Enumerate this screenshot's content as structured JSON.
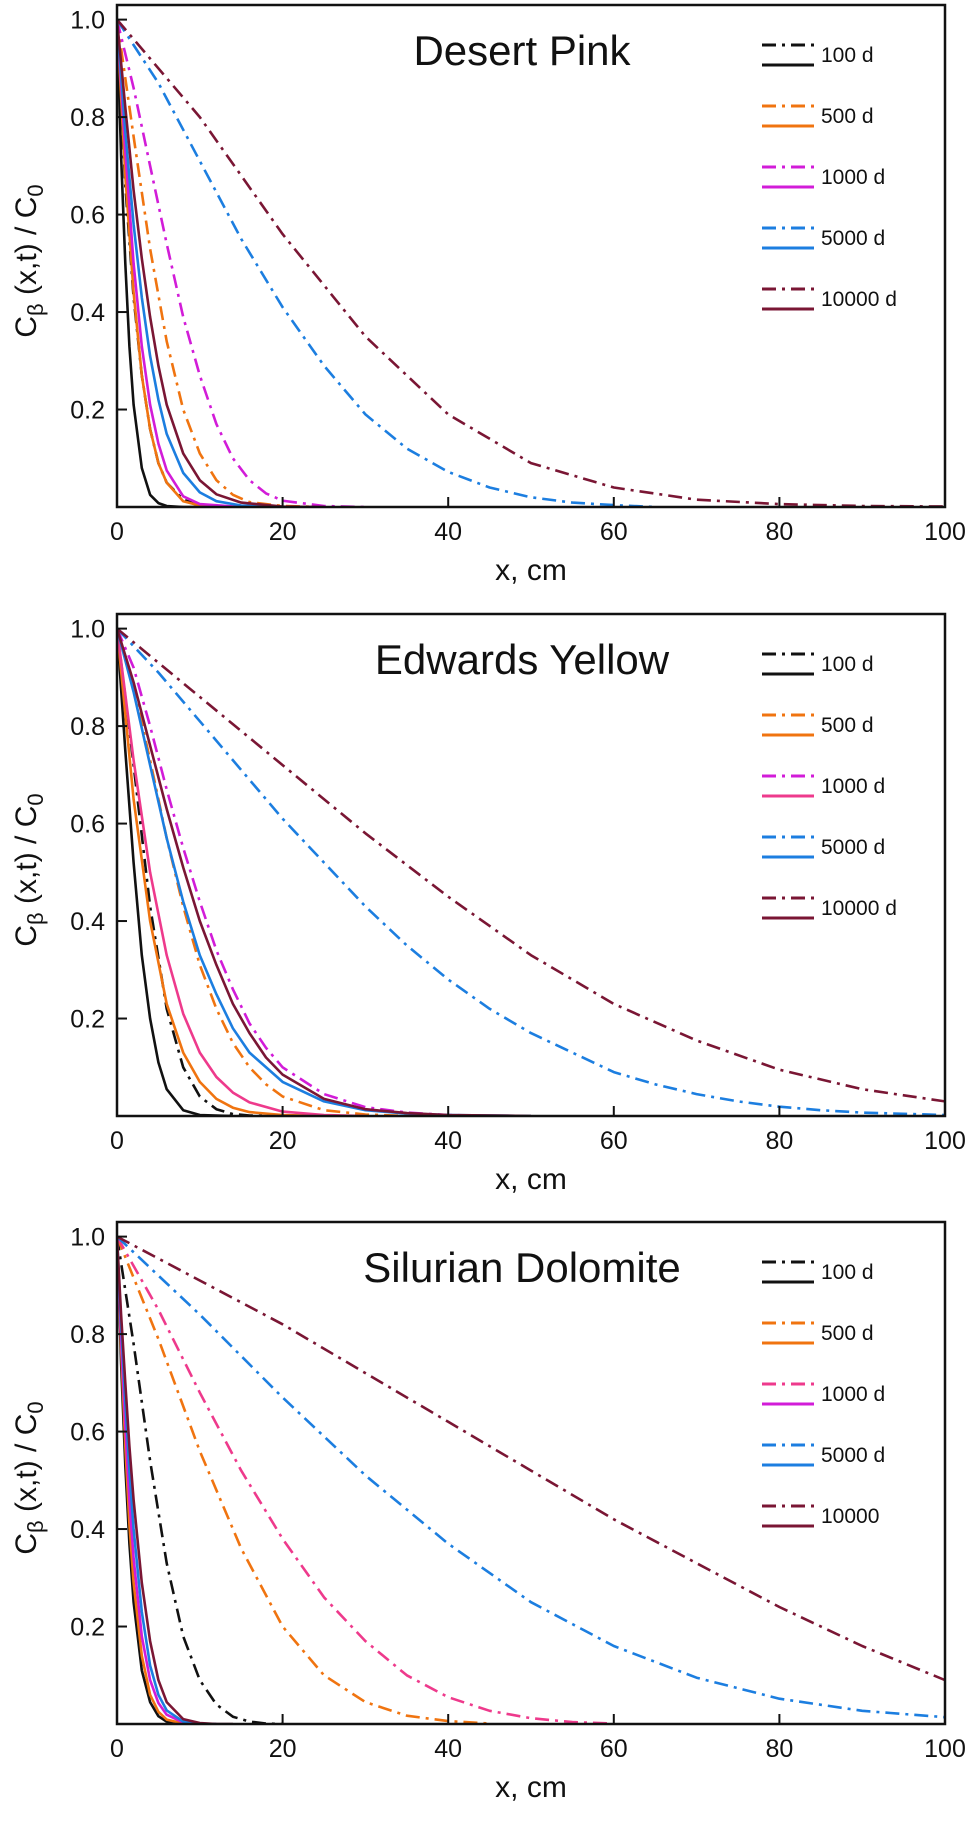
{
  "colors": {
    "100 d": "#111111",
    "500 d": "#f07410",
    "1000 d": "#d21cd8",
    "5000 d": "#1c7ee0",
    "10000 d": "#7a1634",
    "magenta_pink": "#ee3a8c",
    "axis": "#111111"
  },
  "chart_data": [
    {
      "type": "line",
      "title": "Desert Pink",
      "xlabel": "x, cm",
      "ylabel": {
        "main": "C",
        "sub": "β",
        "mid": " (x,t) / C",
        "sub2": "0"
      },
      "xlim": [
        0,
        100
      ],
      "ylim": [
        0,
        1.03
      ],
      "xticks": [
        "0",
        "20",
        "40",
        "60",
        "80",
        "100"
      ],
      "yticks": [
        "0.2",
        "0.4",
        "0.6",
        "0.8",
        "1.0"
      ],
      "legend": {
        "position": "top-right",
        "entries": [
          "100 d",
          "500 d",
          "1000 d",
          "5000 d",
          "10000 d"
        ]
      },
      "series": [
        {
          "legend": "100 d",
          "style": "dashdot",
          "color": "100 d",
          "x": [
            0,
            1,
            2,
            3,
            4,
            5,
            6,
            8,
            10,
            15,
            20
          ],
          "y": [
            1.0,
            0.66,
            0.43,
            0.27,
            0.16,
            0.09,
            0.05,
            0.015,
            0.004,
            0.0,
            0.0
          ]
        },
        {
          "legend": "100 d",
          "style": "solid",
          "color": "100 d",
          "x": [
            0,
            0.5,
            1,
            1.5,
            2,
            3,
            4,
            5,
            6,
            8,
            10
          ],
          "y": [
            1.0,
            0.72,
            0.5,
            0.33,
            0.21,
            0.08,
            0.025,
            0.008,
            0.002,
            0.0,
            0.0
          ]
        },
        {
          "legend": "500 d",
          "style": "dashdot",
          "color": "500 d",
          "x": [
            0,
            2,
            4,
            6,
            8,
            10,
            12,
            14,
            16,
            20,
            25
          ],
          "y": [
            1.0,
            0.76,
            0.53,
            0.34,
            0.2,
            0.11,
            0.055,
            0.025,
            0.01,
            0.002,
            0.0
          ]
        },
        {
          "legend": "500 d",
          "style": "solid",
          "color": "500 d",
          "x": [
            0,
            1,
            2,
            3,
            4,
            5,
            6,
            8,
            10,
            15
          ],
          "y": [
            1.0,
            0.68,
            0.44,
            0.27,
            0.16,
            0.09,
            0.05,
            0.012,
            0.003,
            0.0
          ]
        },
        {
          "legend": "1000 d",
          "style": "dashdot",
          "color": "1000 d",
          "x": [
            0,
            2,
            4,
            6,
            8,
            10,
            12,
            14,
            16,
            18,
            20,
            25,
            30
          ],
          "y": [
            1.0,
            0.86,
            0.7,
            0.54,
            0.39,
            0.27,
            0.17,
            0.1,
            0.055,
            0.028,
            0.013,
            0.002,
            0.0
          ]
        },
        {
          "legend": "1000 d",
          "style": "solid",
          "color": "1000 d",
          "x": [
            0,
            1,
            2,
            3,
            4,
            5,
            6,
            8,
            10,
            15
          ],
          "y": [
            1.0,
            0.73,
            0.5,
            0.33,
            0.21,
            0.13,
            0.075,
            0.022,
            0.006,
            0.0
          ]
        },
        {
          "legend": "5000 d",
          "style": "dashdot",
          "color": "5000 d",
          "x": [
            0,
            5,
            10,
            15,
            20,
            25,
            30,
            35,
            40,
            45,
            50,
            55,
            60,
            65
          ],
          "y": [
            1.0,
            0.87,
            0.71,
            0.55,
            0.41,
            0.29,
            0.19,
            0.12,
            0.072,
            0.04,
            0.02,
            0.009,
            0.004,
            0.0
          ]
        },
        {
          "legend": "5000 d",
          "style": "solid",
          "color": "5000 d",
          "x": [
            0,
            1,
            2,
            3,
            4,
            5,
            6,
            8,
            10,
            12,
            15,
            20
          ],
          "y": [
            1.0,
            0.77,
            0.58,
            0.43,
            0.31,
            0.22,
            0.15,
            0.07,
            0.03,
            0.012,
            0.003,
            0.0
          ]
        },
        {
          "legend": "10000 d",
          "style": "dashdot",
          "color": "10000 d",
          "x": [
            0,
            10,
            20,
            30,
            40,
            50,
            60,
            70,
            80,
            90,
            100
          ],
          "y": [
            1.0,
            0.8,
            0.56,
            0.35,
            0.19,
            0.09,
            0.04,
            0.015,
            0.006,
            0.002,
            0.001
          ]
        },
        {
          "legend": "10000 d",
          "style": "solid",
          "color": "10000 d",
          "x": [
            0,
            1,
            2,
            3,
            4,
            5,
            6,
            8,
            10,
            12,
            15,
            20,
            25
          ],
          "y": [
            1.0,
            0.82,
            0.65,
            0.51,
            0.39,
            0.29,
            0.21,
            0.11,
            0.055,
            0.026,
            0.009,
            0.001,
            0.0
          ]
        }
      ]
    },
    {
      "type": "line",
      "title": "Edwards Yellow",
      "xlabel": "x, cm",
      "ylabel": {
        "main": "C",
        "sub": "β",
        "mid": " (x,t) / C",
        "sub2": "0"
      },
      "xlim": [
        0,
        100
      ],
      "ylim": [
        0,
        1.03
      ],
      "xticks": [
        "0",
        "20",
        "40",
        "60",
        "80",
        "100"
      ],
      "yticks": [
        "0.2",
        "0.4",
        "0.6",
        "0.8",
        "1.0"
      ],
      "legend": {
        "position": "top-right",
        "entries": [
          "100 d",
          "500 d",
          "1000 d",
          "5000 d",
          "10000 d"
        ]
      },
      "series": [
        {
          "legend": "100 d",
          "style": "dashdot",
          "color": "100 d",
          "x": [
            0,
            2,
            4,
            6,
            8,
            10,
            12,
            14,
            16,
            20
          ],
          "y": [
            1.0,
            0.72,
            0.43,
            0.22,
            0.1,
            0.04,
            0.014,
            0.004,
            0.001,
            0.0
          ]
        },
        {
          "legend": "100 d",
          "style": "solid",
          "color": "100 d",
          "x": [
            0,
            1,
            2,
            3,
            4,
            5,
            6,
            8,
            10,
            14
          ],
          "y": [
            1.0,
            0.75,
            0.52,
            0.33,
            0.2,
            0.11,
            0.055,
            0.012,
            0.002,
            0.0
          ]
        },
        {
          "legend": "500 d",
          "style": "dashdot",
          "color": "500 d",
          "x": [
            0,
            2,
            4,
            6,
            8,
            10,
            12,
            14,
            16,
            18,
            20,
            25,
            30,
            35
          ],
          "y": [
            1.0,
            0.88,
            0.73,
            0.57,
            0.43,
            0.31,
            0.22,
            0.15,
            0.1,
            0.065,
            0.04,
            0.012,
            0.003,
            0.0
          ]
        },
        {
          "legend": "500 d",
          "style": "solid",
          "color": "500 d",
          "x": [
            0,
            2,
            4,
            6,
            8,
            10,
            12,
            14,
            16,
            20,
            25
          ],
          "y": [
            1.0,
            0.65,
            0.4,
            0.23,
            0.13,
            0.07,
            0.035,
            0.017,
            0.008,
            0.002,
            0.0
          ]
        },
        {
          "legend": "1000 d",
          "style": "dashdot",
          "color": "1000 d",
          "x": [
            0,
            2,
            4,
            6,
            8,
            10,
            12,
            14,
            16,
            18,
            20,
            25,
            30,
            35,
            40,
            45
          ],
          "y": [
            1.0,
            0.92,
            0.8,
            0.67,
            0.55,
            0.44,
            0.34,
            0.26,
            0.19,
            0.14,
            0.1,
            0.045,
            0.018,
            0.007,
            0.002,
            0.0
          ]
        },
        {
          "legend": "1000 d",
          "style": "solid",
          "color": "magenta_pink",
          "x": [
            0,
            2,
            4,
            6,
            8,
            10,
            12,
            14,
            16,
            20,
            25,
            30
          ],
          "y": [
            1.0,
            0.73,
            0.5,
            0.33,
            0.21,
            0.13,
            0.08,
            0.048,
            0.028,
            0.009,
            0.002,
            0.0
          ]
        },
        {
          "legend": "5000 d",
          "style": "dashdot",
          "color": "5000 d",
          "x": [
            0,
            5,
            10,
            15,
            20,
            25,
            30,
            35,
            40,
            45,
            50,
            55,
            60,
            65,
            70,
            75,
            80,
            85,
            90,
            100
          ],
          "y": [
            1.0,
            0.91,
            0.81,
            0.71,
            0.61,
            0.52,
            0.43,
            0.35,
            0.28,
            0.22,
            0.17,
            0.13,
            0.09,
            0.065,
            0.045,
            0.03,
            0.019,
            0.012,
            0.007,
            0.002
          ]
        },
        {
          "legend": "5000 d",
          "style": "solid",
          "color": "5000 d",
          "x": [
            0,
            2,
            4,
            6,
            8,
            10,
            12,
            14,
            16,
            20,
            25,
            30,
            35,
            40,
            50
          ],
          "y": [
            1.0,
            0.87,
            0.72,
            0.57,
            0.44,
            0.33,
            0.25,
            0.18,
            0.13,
            0.07,
            0.03,
            0.012,
            0.005,
            0.002,
            0.0
          ]
        },
        {
          "legend": "10000 d",
          "style": "dashdot",
          "color": "10000 d",
          "x": [
            0,
            10,
            20,
            30,
            40,
            50,
            60,
            70,
            80,
            90,
            100
          ],
          "y": [
            1.0,
            0.86,
            0.72,
            0.58,
            0.45,
            0.33,
            0.23,
            0.155,
            0.095,
            0.055,
            0.03
          ]
        },
        {
          "legend": "10000 d",
          "style": "solid",
          "color": "10000 d",
          "x": [
            0,
            2,
            4,
            6,
            8,
            10,
            12,
            14,
            16,
            18,
            20,
            25,
            30,
            35,
            40,
            50
          ],
          "y": [
            1.0,
            0.89,
            0.76,
            0.63,
            0.51,
            0.4,
            0.31,
            0.23,
            0.17,
            0.12,
            0.085,
            0.035,
            0.014,
            0.006,
            0.002,
            0.0
          ]
        }
      ]
    },
    {
      "type": "line",
      "title": "Silurian Dolomite",
      "xlabel": "x, cm",
      "ylabel": {
        "main": "C",
        "sub": "β",
        "mid": " (x,t) / C",
        "sub2": "0"
      },
      "xlim": [
        0,
        100
      ],
      "ylim": [
        0,
        1.03
      ],
      "xticks": [
        "0",
        "20",
        "40",
        "60",
        "80",
        "100"
      ],
      "yticks": [
        "0.2",
        "0.4",
        "0.6",
        "0.8",
        "1.0"
      ],
      "legend": {
        "position": "top-right",
        "entries": [
          "100 d",
          "500 d",
          "1000 d",
          "5000 d",
          "10000"
        ]
      },
      "series": [
        {
          "legend": "100 d",
          "style": "dashdot",
          "color": "100 d",
          "x": [
            0,
            2,
            4,
            6,
            8,
            10,
            12,
            14,
            16,
            18,
            20
          ],
          "y": [
            1.0,
            0.78,
            0.54,
            0.33,
            0.18,
            0.09,
            0.04,
            0.015,
            0.005,
            0.001,
            0.0
          ]
        },
        {
          "legend": "100 d",
          "style": "solid",
          "color": "100 d",
          "x": [
            0,
            0.5,
            1,
            1.5,
            2,
            3,
            4,
            5,
            6,
            8,
            10
          ],
          "y": [
            1.0,
            0.74,
            0.53,
            0.37,
            0.25,
            0.11,
            0.045,
            0.016,
            0.005,
            0.0,
            0.0
          ]
        },
        {
          "legend": "500 d",
          "style": "dashdot",
          "color": "500 d",
          "x": [
            0,
            5,
            10,
            15,
            20,
            25,
            30,
            35,
            40,
            45
          ],
          "y": [
            1.0,
            0.79,
            0.56,
            0.36,
            0.2,
            0.1,
            0.045,
            0.017,
            0.006,
            0.001
          ]
        },
        {
          "legend": "500 d",
          "style": "solid",
          "color": "500 d",
          "x": [
            0,
            0.5,
            1,
            1.5,
            2,
            3,
            4,
            5,
            6,
            8,
            10
          ],
          "y": [
            1.0,
            0.77,
            0.57,
            0.41,
            0.29,
            0.14,
            0.06,
            0.025,
            0.009,
            0.001,
            0.0
          ]
        },
        {
          "legend": "1000 d",
          "style": "dashdot",
          "color": "magenta_pink",
          "x": [
            0,
            5,
            10,
            15,
            20,
            25,
            30,
            35,
            40,
            45,
            50,
            55,
            60
          ],
          "y": [
            1.0,
            0.85,
            0.68,
            0.52,
            0.38,
            0.26,
            0.17,
            0.1,
            0.055,
            0.027,
            0.012,
            0.004,
            0.001
          ]
        },
        {
          "legend": "1000 d",
          "style": "solid",
          "color": "1000 d",
          "x": [
            0,
            0.5,
            1,
            1.5,
            2,
            3,
            4,
            5,
            6,
            8,
            10,
            12
          ],
          "y": [
            1.0,
            0.79,
            0.61,
            0.46,
            0.34,
            0.18,
            0.09,
            0.043,
            0.019,
            0.003,
            0.0,
            0.0
          ]
        },
        {
          "legend": "5000 d",
          "style": "dashdot",
          "color": "5000 d",
          "x": [
            0,
            10,
            20,
            30,
            40,
            50,
            60,
            70,
            80,
            90,
            100
          ],
          "y": [
            1.0,
            0.84,
            0.67,
            0.51,
            0.37,
            0.25,
            0.16,
            0.095,
            0.052,
            0.027,
            0.014
          ]
        },
        {
          "legend": "5000 d",
          "style": "solid",
          "color": "5000 d",
          "x": [
            0,
            0.5,
            1,
            1.5,
            2,
            3,
            4,
            5,
            6,
            8,
            10,
            12
          ],
          "y": [
            1.0,
            0.82,
            0.66,
            0.52,
            0.4,
            0.23,
            0.12,
            0.06,
            0.028,
            0.005,
            0.001,
            0.0
          ]
        },
        {
          "legend": "10000",
          "style": "dashdot",
          "color": "10000 d",
          "x": [
            0,
            10,
            20,
            30,
            40,
            50,
            60,
            70,
            80,
            90,
            100
          ],
          "y": [
            1.0,
            0.91,
            0.82,
            0.72,
            0.62,
            0.52,
            0.42,
            0.33,
            0.24,
            0.16,
            0.09
          ]
        },
        {
          "legend": "10000",
          "style": "solid",
          "color": "10000 d",
          "x": [
            0,
            0.5,
            1,
            1.5,
            2,
            3,
            4,
            5,
            6,
            8,
            10,
            12,
            14
          ],
          "y": [
            1.0,
            0.84,
            0.7,
            0.57,
            0.46,
            0.29,
            0.17,
            0.09,
            0.045,
            0.01,
            0.002,
            0.0,
            0.0
          ]
        }
      ]
    }
  ]
}
